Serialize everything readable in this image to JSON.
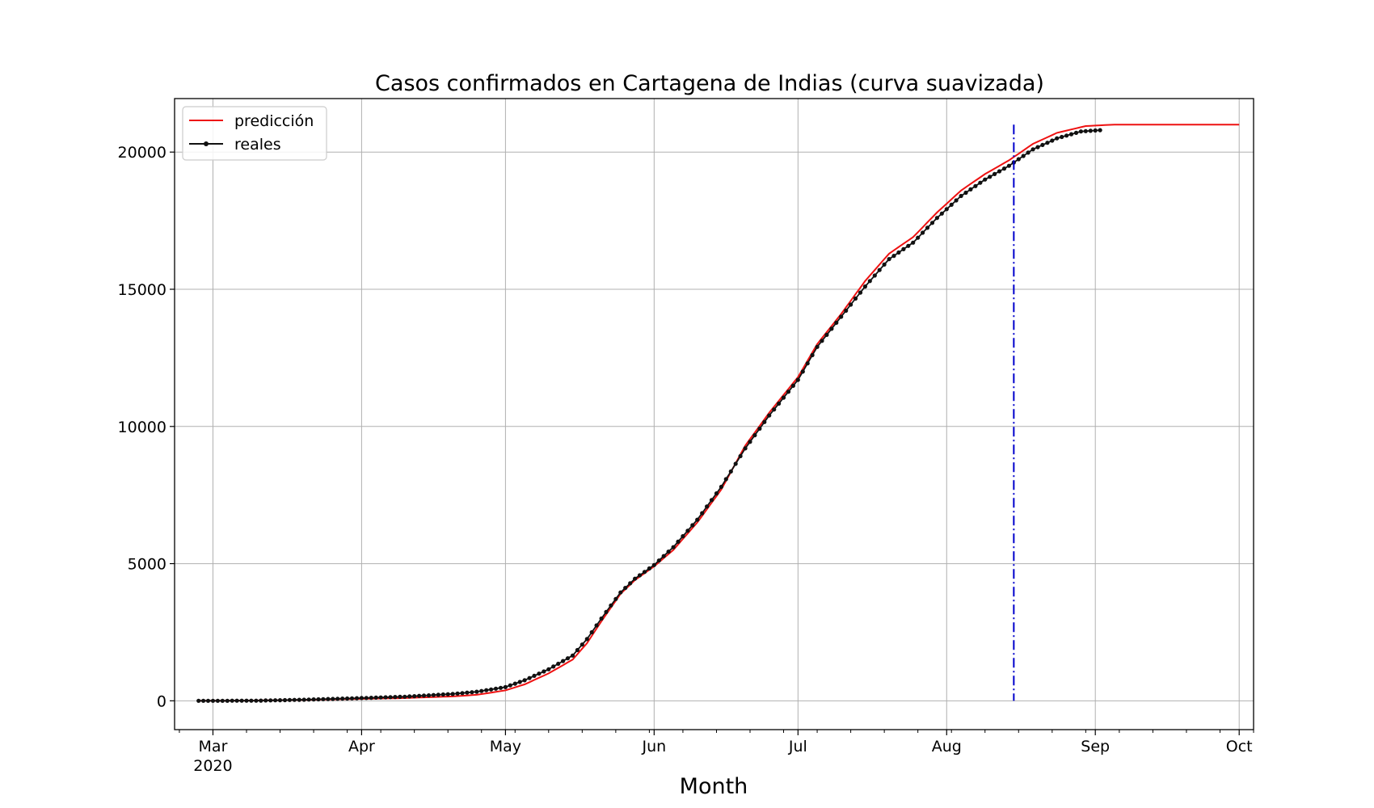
{
  "chart_data": {
    "type": "line",
    "title": "Casos confirmados en Cartagena de Indias (curva suavizada)",
    "xlabel": "Month",
    "ylabel": "",
    "x_type": "date",
    "xlim": [
      "2020-02-22",
      "2020-10-04"
    ],
    "ylim": [
      -1050,
      21950
    ],
    "grid": true,
    "legend_position": "top-left",
    "x_ticks": [
      {
        "date": "2020-03-01",
        "label": "Mar",
        "sublabel": "2020"
      },
      {
        "date": "2020-04-01",
        "label": "Apr",
        "sublabel": ""
      },
      {
        "date": "2020-05-01",
        "label": "May",
        "sublabel": ""
      },
      {
        "date": "2020-06-01",
        "label": "Jun",
        "sublabel": ""
      },
      {
        "date": "2020-07-01",
        "label": "Jul",
        "sublabel": ""
      },
      {
        "date": "2020-08-01",
        "label": "Aug",
        "sublabel": ""
      },
      {
        "date": "2020-09-01",
        "label": "Sep",
        "sublabel": ""
      },
      {
        "date": "2020-10-01",
        "label": "Oct",
        "sublabel": ""
      }
    ],
    "y_ticks": [
      0,
      5000,
      10000,
      15000,
      20000
    ],
    "vline": {
      "date": "2020-08-15",
      "y_range": [
        0,
        21000
      ],
      "color": "#0000cc",
      "style": "dashdot"
    },
    "series": [
      {
        "name": "predicción",
        "color": "#ee1111",
        "marker": false,
        "points": [
          [
            "2020-02-27",
            0
          ],
          [
            "2020-03-10",
            10
          ],
          [
            "2020-03-20",
            35
          ],
          [
            "2020-04-01",
            70
          ],
          [
            "2020-04-10",
            100
          ],
          [
            "2020-04-20",
            160
          ],
          [
            "2020-04-25",
            220
          ],
          [
            "2020-05-01",
            380
          ],
          [
            "2020-05-05",
            600
          ],
          [
            "2020-05-10",
            1000
          ],
          [
            "2020-05-15",
            1500
          ],
          [
            "2020-05-18",
            2100
          ],
          [
            "2020-05-21",
            2900
          ],
          [
            "2020-05-25",
            3900
          ],
          [
            "2020-05-28",
            4400
          ],
          [
            "2020-06-01",
            4900
          ],
          [
            "2020-06-05",
            5500
          ],
          [
            "2020-06-10",
            6500
          ],
          [
            "2020-06-15",
            7700
          ],
          [
            "2020-06-20",
            9300
          ],
          [
            "2020-06-25",
            10500
          ],
          [
            "2020-07-01",
            11800
          ],
          [
            "2020-07-05",
            13000
          ],
          [
            "2020-07-10",
            14100
          ],
          [
            "2020-07-15",
            15300
          ],
          [
            "2020-07-20",
            16300
          ],
          [
            "2020-07-25",
            16900
          ],
          [
            "2020-07-30",
            17800
          ],
          [
            "2020-08-04",
            18600
          ],
          [
            "2020-08-09",
            19200
          ],
          [
            "2020-08-14",
            19700
          ],
          [
            "2020-08-19",
            20300
          ],
          [
            "2020-08-24",
            20700
          ],
          [
            "2020-08-30",
            20950
          ],
          [
            "2020-09-05",
            21000
          ],
          [
            "2020-10-01",
            21000
          ]
        ]
      },
      {
        "name": "reales",
        "color": "#111111",
        "marker": true,
        "points": [
          [
            "2020-02-27",
            0
          ],
          [
            "2020-03-10",
            5
          ],
          [
            "2020-03-20",
            40
          ],
          [
            "2020-04-01",
            100
          ],
          [
            "2020-04-10",
            150
          ],
          [
            "2020-04-20",
            250
          ],
          [
            "2020-04-25",
            330
          ],
          [
            "2020-05-01",
            500
          ],
          [
            "2020-05-05",
            750
          ],
          [
            "2020-05-10",
            1150
          ],
          [
            "2020-05-15",
            1650
          ],
          [
            "2020-05-18",
            2250
          ],
          [
            "2020-05-21",
            3000
          ],
          [
            "2020-05-25",
            3950
          ],
          [
            "2020-05-28",
            4450
          ],
          [
            "2020-06-01",
            4950
          ],
          [
            "2020-06-05",
            5600
          ],
          [
            "2020-06-10",
            6600
          ],
          [
            "2020-06-15",
            7800
          ],
          [
            "2020-06-20",
            9200
          ],
          [
            "2020-06-25",
            10400
          ],
          [
            "2020-07-01",
            11700
          ],
          [
            "2020-07-05",
            12900
          ],
          [
            "2020-07-10",
            14000
          ],
          [
            "2020-07-15",
            15100
          ],
          [
            "2020-07-20",
            16100
          ],
          [
            "2020-07-25",
            16700
          ],
          [
            "2020-07-30",
            17600
          ],
          [
            "2020-08-04",
            18400
          ],
          [
            "2020-08-09",
            19000
          ],
          [
            "2020-08-14",
            19500
          ],
          [
            "2020-08-19",
            20100
          ],
          [
            "2020-08-24",
            20500
          ],
          [
            "2020-08-29",
            20750
          ],
          [
            "2020-09-02",
            20800
          ]
        ]
      }
    ]
  }
}
